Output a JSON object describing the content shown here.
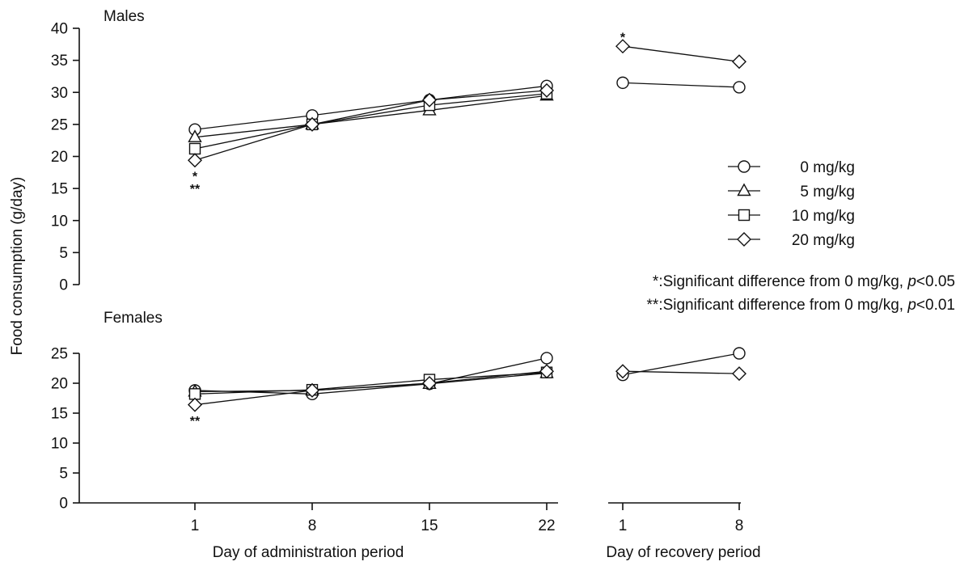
{
  "chart_data": {
    "type": "line",
    "ylabel": "Food consumption (g/day)",
    "panels": [
      {
        "title": "Males",
        "ylim": [
          0,
          40
        ],
        "yticks": [
          0,
          5,
          10,
          15,
          20,
          25,
          30,
          35,
          40
        ]
      },
      {
        "title": "Females",
        "ylim": [
          0,
          25
        ],
        "yticks": [
          0,
          5,
          10,
          15,
          20,
          25
        ]
      }
    ],
    "x_groups": [
      {
        "label": "Day of administration period",
        "x": [
          1,
          8,
          15,
          22
        ],
        "tick_labels": [
          "1",
          "8",
          "15",
          "22"
        ]
      },
      {
        "label": "Day of recovery period",
        "x": [
          1,
          8
        ],
        "tick_labels": [
          "1",
          "8"
        ]
      }
    ],
    "series": [
      {
        "name": "0 mg/kg",
        "marker": "circle",
        "males": {
          "administration": [
            24.2,
            26.4,
            28.8,
            31.0
          ],
          "recovery": [
            31.5,
            30.8
          ]
        },
        "females": {
          "administration": [
            18.8,
            18.2,
            19.9,
            24.2
          ],
          "recovery": [
            21.4,
            25.0
          ]
        }
      },
      {
        "name": "5 mg/kg",
        "marker": "triangle",
        "males": {
          "administration": [
            23.0,
            25.0,
            27.2,
            29.5
          ]
        },
        "females": {
          "administration": [
            18.6,
            18.8,
            19.9,
            21.7
          ]
        }
      },
      {
        "name": "10 mg/kg",
        "marker": "square",
        "males": {
          "administration": [
            21.2,
            25.0,
            28.0,
            29.8
          ]
        },
        "females": {
          "administration": [
            18.2,
            18.9,
            20.6,
            21.8
          ]
        }
      },
      {
        "name": "20 mg/kg",
        "marker": "diamond",
        "males": {
          "administration": [
            19.4,
            25.0,
            28.8,
            30.3
          ],
          "recovery": [
            37.2,
            34.8
          ]
        },
        "females": {
          "administration": [
            16.4,
            18.8,
            20.0,
            22.0
          ],
          "recovery": [
            22.0,
            21.6
          ]
        }
      }
    ],
    "annotations": [
      {
        "panel": "males",
        "group": "administration",
        "x": 1,
        "text": "*",
        "y": 17.5
      },
      {
        "panel": "males",
        "group": "administration",
        "x": 1,
        "text": "**",
        "y": 15.5
      },
      {
        "panel": "males",
        "group": "recovery",
        "x": 1,
        "text": "*",
        "y": 39.2
      },
      {
        "panel": "females",
        "group": "administration",
        "x": 1,
        "text": "**",
        "y": 14.3
      }
    ],
    "footnotes": [
      {
        "prefix": "*:Significant difference from 0 mg/kg, ",
        "pvar": "p",
        "suffix": "<0.05"
      },
      {
        "prefix": "**:Significant difference from 0 mg/kg, ",
        "pvar": "p",
        "suffix": "<0.01"
      }
    ],
    "legend_position": "right"
  }
}
